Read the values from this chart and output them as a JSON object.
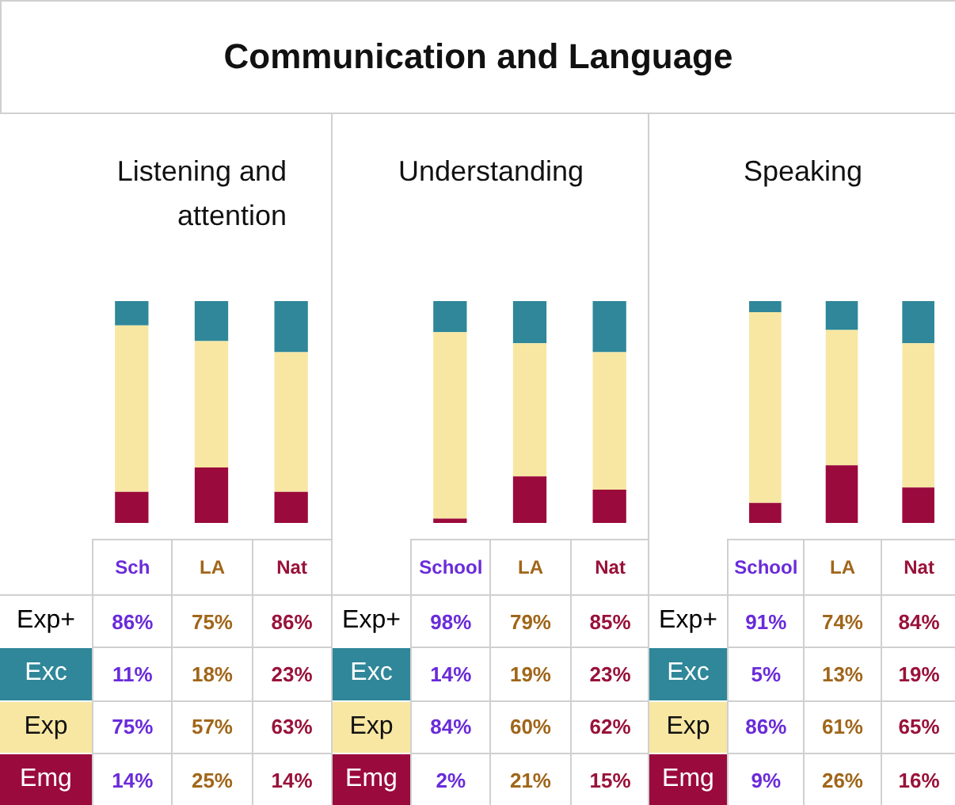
{
  "chart_data": [
    {
      "type": "bar",
      "title": "Communication and Language",
      "subtitle": "Listening and attention",
      "categories": [
        "Sch",
        "LA",
        "Nat"
      ],
      "stacked": true,
      "data_labels": true,
      "legend": false,
      "annotations": [
        "Exp+",
        "86%",
        "75%",
        "86%"
      ],
      "series": [
        {
          "name": "Emg",
          "color": "#9b0a3c",
          "values": [
            14,
            25,
            14
          ],
          "value_labels": [
            "14%",
            "25%",
            "14%"
          ]
        },
        {
          "name": "Exp",
          "color": "#f8e7a2",
          "values": [
            75,
            57,
            63
          ],
          "value_labels": [
            "75%",
            "57%",
            "63%"
          ]
        },
        {
          "name": "Exc",
          "color": "#2f8799",
          "values": [
            11,
            18,
            23
          ],
          "value_labels": [
            "11%",
            "18%",
            "23%"
          ]
        }
      ]
    },
    {
      "type": "bar",
      "subtitle": "Understanding",
      "categories": [
        "School",
        "LA",
        "Nat"
      ],
      "stacked": true,
      "data_labels": true,
      "legend": false,
      "annotations": [
        "Exp+",
        "98%",
        "79%",
        "85%"
      ],
      "series": [
        {
          "name": "Emg",
          "color": "#9b0a3c",
          "values": [
            2,
            21,
            15
          ],
          "value_labels": [
            "2%",
            "21%",
            "15%"
          ]
        },
        {
          "name": "Exp",
          "color": "#f8e7a2",
          "values": [
            84,
            60,
            62
          ],
          "value_labels": [
            "84%",
            "60%",
            "62%"
          ]
        },
        {
          "name": "Exc",
          "color": "#2f8799",
          "values": [
            14,
            19,
            23
          ],
          "value_labels": [
            "14%",
            "19%",
            "23%"
          ]
        }
      ]
    },
    {
      "type": "bar",
      "subtitle": "Speaking",
      "categories": [
        "School",
        "LA",
        "Nat"
      ],
      "stacked": true,
      "data_labels": true,
      "legend": false,
      "annotations": [
        "Exp+",
        "91%",
        "74%",
        "84%"
      ],
      "series": [
        {
          "name": "Emg",
          "color": "#9b0a3c",
          "values": [
            9,
            26,
            16
          ],
          "value_labels": [
            "9%",
            "26%",
            "16%"
          ]
        },
        {
          "name": "Exp",
          "color": "#f8e7a2",
          "values": [
            86,
            61,
            65
          ],
          "value_labels": [
            "86%",
            "61%",
            "65%"
          ]
        },
        {
          "name": "Exc",
          "color": "#2f8799",
          "values": [
            5,
            13,
            19
          ],
          "value_labels": [
            "5%",
            "13%",
            "19%"
          ]
        }
      ]
    }
  ]
}
